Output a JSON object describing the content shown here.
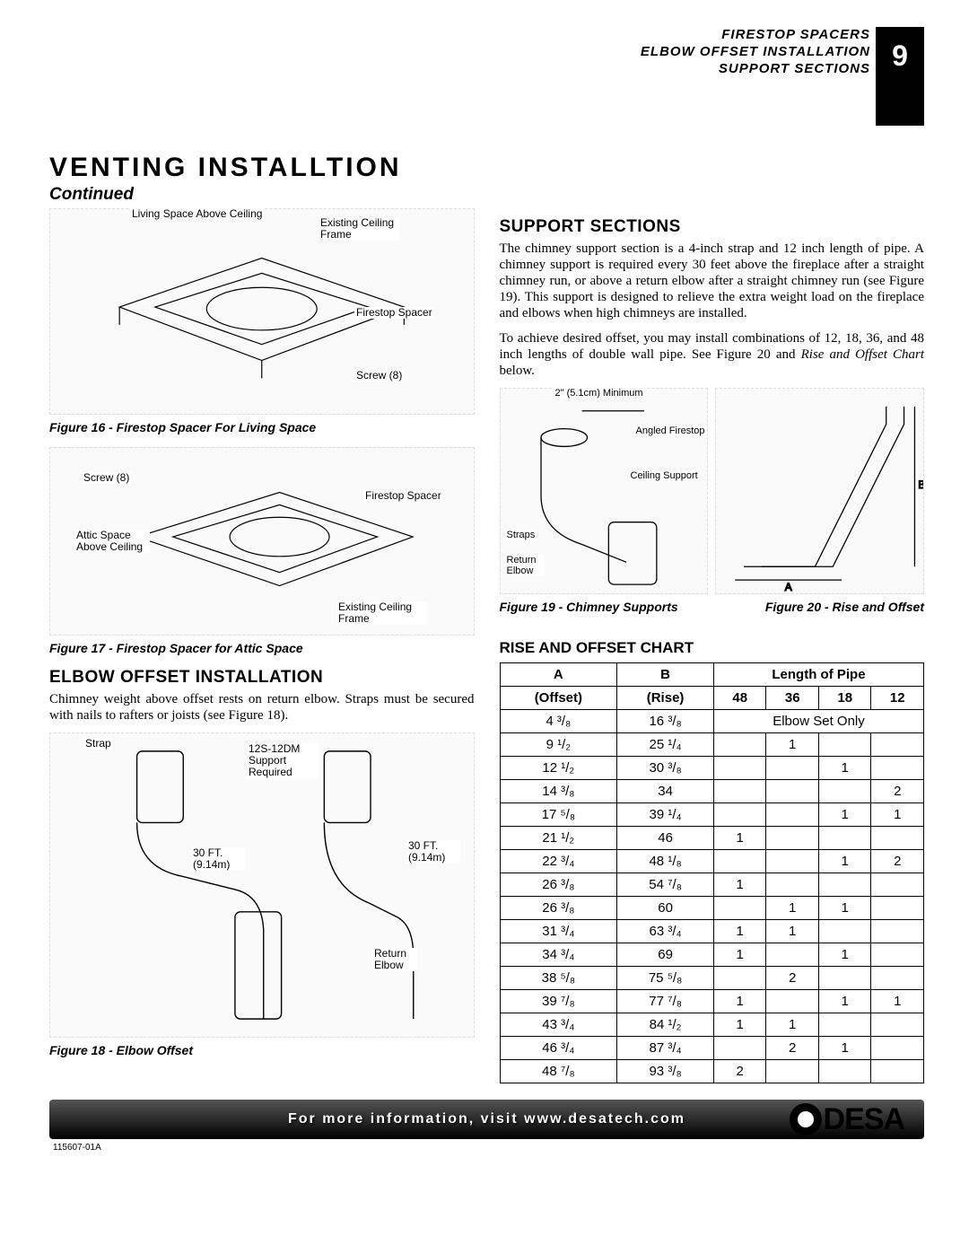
{
  "header": {
    "lines": [
      "FIRESTOP SPACERS",
      "ELBOW OFFSET INSTALLATION",
      "SUPPORT SECTIONS"
    ],
    "page_number": "9"
  },
  "title": "VENTING INSTALLTION",
  "continued": "Continued",
  "col_left": {
    "fig16_labels": {
      "a": "Living Space Above Ceiling",
      "b": "Existing Ceiling Frame",
      "c": "Firestop Spacer",
      "d": "Screw (8)"
    },
    "fig16_caption": "Figure 16 - Firestop Spacer For Living Space",
    "fig17_labels": {
      "a": "Screw (8)",
      "b": "Firestop Spacer",
      "c": "Attic Space Above Ceiling",
      "d": "Existing Ceiling Frame"
    },
    "fig17_caption": "Figure 17 - Firestop Spacer for Attic Space",
    "h2": "ELBOW OFFSET INSTALLATION",
    "para": "Chimney weight above offset rests on return elbow. Straps must be secured with nails to rafters or joists (see Figure 18).",
    "fig18_labels": {
      "a": "Strap",
      "b": "12S-12DM Support Required",
      "c": "30 FT. (9.14m)",
      "d": "30 FT. (9.14m)",
      "e": "Return Elbow"
    },
    "fig18_caption": "Figure 18 - Elbow Offset"
  },
  "col_right": {
    "h2": "SUPPORT SECTIONS",
    "para1": "The chimney support section is a 4-inch strap and 12 inch length of pipe. A chimney support is required every 30 feet above the fireplace after a straight chimney run, or above a return elbow after a straight chimney run (see Figure 19). This support is designed to relieve the extra weight load on the fireplace and elbows when high chimneys are installed.",
    "para2_a": "To achieve desired offset, you may install combinations of 12, 18, 36, and 48 inch lengths of double wall pipe. See Figure 20 and ",
    "para2_b": "Rise and Offset Chart",
    "para2_c": " below.",
    "fig19_labels": {
      "a": "2\" (5.1cm) Minimum",
      "b": "Angled Firestop",
      "c": "Ceiling Support",
      "d": "Straps",
      "e": "Return Elbow"
    },
    "fig20_labels": {
      "a": "A",
      "b": "B"
    },
    "fig19_caption": "Figure 19 - Chimney Supports",
    "fig20_caption": "Figure 20 - Rise and Offset",
    "chart_title": "RISE AND OFFSET CHART",
    "chart": {
      "header_row1": [
        "A",
        "B",
        "Length of Pipe"
      ],
      "header_row2": [
        "(Offset)",
        "(Rise)",
        "48",
        "36",
        "18",
        "12"
      ],
      "rows": [
        {
          "a": "4 ³/₈",
          "b": "16 ³/₈",
          "span": "Elbow Set Only"
        },
        {
          "a": "9 ¹/₂",
          "b": "25 ¹/₄",
          "c": [
            "",
            "1",
            "",
            ""
          ]
        },
        {
          "a": "12 ¹/₂",
          "b": "30 ³/₈",
          "c": [
            "",
            "",
            "1",
            ""
          ]
        },
        {
          "a": "14 ³/₈",
          "b": "34",
          "c": [
            "",
            "",
            "",
            "2"
          ]
        },
        {
          "a": "17 ⁵/₈",
          "b": "39 ¹/₄",
          "c": [
            "",
            "",
            "1",
            "1"
          ]
        },
        {
          "a": "21 ¹/₂",
          "b": "46",
          "c": [
            "1",
            "",
            "",
            ""
          ]
        },
        {
          "a": "22 ³/₄",
          "b": "48 ¹/₈",
          "c": [
            "",
            "",
            "1",
            "2"
          ]
        },
        {
          "a": "26 ³/₈",
          "b": "54 ⁷/₈",
          "c": [
            "1",
            "",
            "",
            ""
          ]
        },
        {
          "a": "26 ³/₈",
          "b": "60",
          "c": [
            "",
            "1",
            "1",
            ""
          ]
        },
        {
          "a": "31 ³/₄",
          "b": "63 ³/₄",
          "c": [
            "1",
            "1",
            "",
            ""
          ]
        },
        {
          "a": "34 ³/₄",
          "b": "69",
          "c": [
            "1",
            "",
            "1",
            ""
          ]
        },
        {
          "a": "38 ⁵/₈",
          "b": "75 ⁵/₈",
          "c": [
            "",
            "2",
            "",
            ""
          ]
        },
        {
          "a": "39 ⁷/₈",
          "b": "77 ⁷/₈",
          "c": [
            "1",
            "",
            "1",
            "1"
          ]
        },
        {
          "a": "43 ³/₄",
          "b": "84 ¹/₂",
          "c": [
            "1",
            "1",
            "",
            ""
          ]
        },
        {
          "a": "46 ³/₄",
          "b": "87 ³/₄",
          "c": [
            "",
            "2",
            "1",
            ""
          ]
        },
        {
          "a": "48 ⁷/₈",
          "b": "93 ³/₈",
          "c": [
            "2",
            "",
            "",
            ""
          ]
        }
      ]
    }
  },
  "footer": {
    "text": "For more information, visit www.desatech.com",
    "logo": "DESA",
    "docnum": "115607-01A"
  }
}
